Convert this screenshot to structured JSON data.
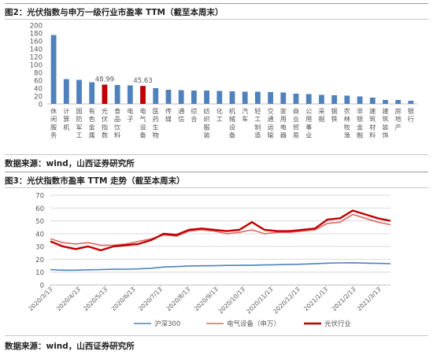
{
  "figures": [
    {
      "title": "图2：光伏指数与申万一级行业市盈率 TTM（截至本周末）",
      "source": "数据来源：wind，山西证券研究所"
    },
    {
      "title": "图3：光伏指数市盈率 TTM 走势（截至本周末）",
      "source": "数据来源：wind，山西证券研究所"
    }
  ],
  "colors": {
    "bar_default": "#4f81bd",
    "bar_highlight": "#c00000",
    "hs300": "#4f81bd",
    "electrical": "#e06666",
    "pv": "#c00000",
    "grid": "#d9d9d9",
    "axis": "#bfbfbf",
    "tick_text": "#595959"
  },
  "chart_data": [
    {
      "type": "bar",
      "title": "",
      "xlabel": "",
      "ylabel": "",
      "ylim": [
        0,
        200
      ],
      "yticks": [
        0,
        20,
        40,
        60,
        80,
        100,
        120,
        140,
        160,
        180,
        200
      ],
      "grid": false,
      "categories": [
        "休闲服务",
        "计算机",
        "国防军工",
        "有色金属",
        "光伏指数",
        "食品饮料",
        "电子",
        "电气设备",
        "医药生物",
        "传媒",
        "通信",
        "综合",
        "纺织服装",
        "化工",
        "机械设备",
        "汽车",
        "轻工制造",
        "交通运输",
        "家用电器",
        "商业贸易",
        "公用事业",
        "采掘",
        "钢铁",
        "农林牧渔",
        "非银金融",
        "建筑材料",
        "建筑装饰",
        "房地产",
        "银行"
      ],
      "values": [
        175,
        63,
        61,
        55,
        48.99,
        48,
        47,
        45.63,
        40,
        36,
        35,
        34,
        34,
        33,
        32,
        31,
        31,
        30,
        29,
        26,
        25,
        23,
        22,
        21,
        19,
        16,
        10,
        10,
        8
      ],
      "highlight": [
        "光伏指数",
        "电气设备"
      ],
      "data_labels": [
        {
          "category": "光伏指数",
          "text": "48.99"
        },
        {
          "category": "电气设备",
          "text": "45.63"
        }
      ]
    },
    {
      "type": "line",
      "title": "",
      "xlabel": "",
      "ylabel": "",
      "ylim": [
        0,
        70
      ],
      "yticks": [
        0,
        10,
        20,
        30,
        40,
        50,
        60,
        70
      ],
      "grid": true,
      "legend": "bottom",
      "x_ticks": [
        "2020/3/13",
        "2020/4/13",
        "2020/5/13",
        "2020/6/13",
        "2020/7/13",
        "2020/8/13",
        "2020/9/13",
        "2020/10/13",
        "2020/11/13",
        "2020/12/13",
        "2021/1/13",
        "2021/2/13",
        "2021/3/13"
      ],
      "x": [
        "2020/3/13",
        "2020/3/27",
        "2020/4/10",
        "2020/4/24",
        "2020/5/8",
        "2020/5/22",
        "2020/6/5",
        "2020/6/19",
        "2020/7/3",
        "2020/7/17",
        "2020/7/31",
        "2020/8/14",
        "2020/8/28",
        "2020/9/11",
        "2020/9/25",
        "2020/10/9",
        "2020/10/23",
        "2020/11/6",
        "2020/11/20",
        "2020/12/4",
        "2020/12/18",
        "2021/1/1",
        "2021/1/15",
        "2021/1/29",
        "2021/2/12",
        "2021/2/26",
        "2021/3/12",
        "2021/3/26"
      ],
      "series": [
        {
          "name": "沪深300",
          "color_key": "hs300",
          "values": [
            12,
            11.5,
            11.5,
            11.8,
            12,
            12.2,
            12.3,
            12.5,
            13,
            14,
            14.3,
            14.8,
            14.9,
            15,
            15.2,
            15.3,
            15.4,
            15.6,
            15.8,
            16,
            16.2,
            16.5,
            17,
            17.2,
            17.3,
            17,
            16.8,
            16.6
          ]
        },
        {
          "name": "电气设备（申万）",
          "color_key": "electrical",
          "values": [
            36,
            33,
            32,
            33,
            31,
            31,
            32,
            34,
            36,
            39,
            38,
            42,
            43,
            42,
            40,
            41,
            43,
            40,
            41,
            41,
            42,
            43,
            48,
            49,
            55,
            52,
            49,
            47
          ]
        },
        {
          "name": "光伏行业",
          "color_key": "pv",
          "values": [
            34,
            30,
            28,
            30,
            27,
            30,
            31,
            32,
            35,
            40,
            39,
            43,
            44,
            43,
            42,
            43,
            49,
            43,
            42,
            42,
            43,
            44,
            51,
            52,
            58,
            55,
            52,
            50
          ]
        }
      ]
    }
  ]
}
